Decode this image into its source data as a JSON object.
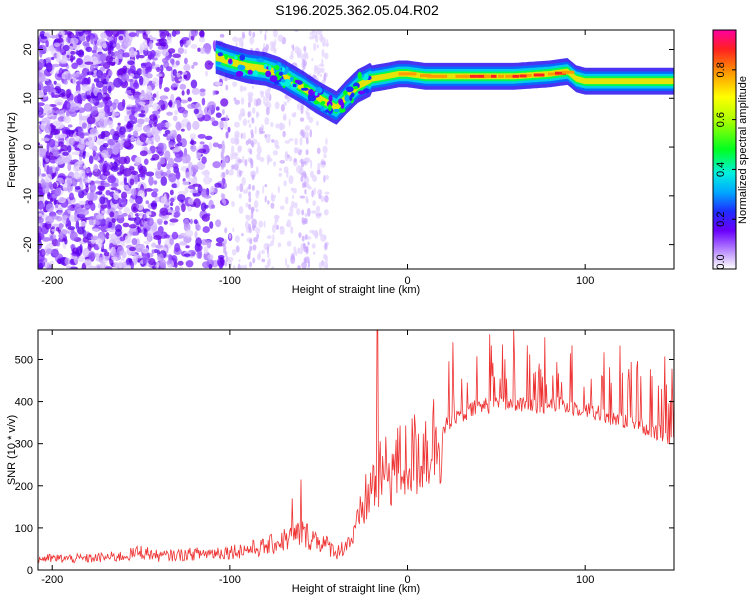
{
  "title": "S196.2025.362.05.04.R02",
  "chart_data": [
    {
      "type": "heatmap",
      "xlabel": "Height of straight line (km)",
      "ylabel": "Frequency (Hz)",
      "xlim": [
        -208,
        150
      ],
      "ylim": [
        -25,
        24
      ],
      "x_ticks": [
        -200,
        -100,
        0,
        100
      ],
      "x_tick_labels": [
        "-200",
        "-100",
        "0",
        "100"
      ],
      "y_ticks": [
        20,
        10,
        0,
        -10,
        -20
      ],
      "y_tick_labels": [
        "20",
        "10",
        "0",
        "-10",
        "-20"
      ],
      "colorbar": {
        "label": "Normalized spectral amplitude",
        "range": [
          0,
          0.96
        ],
        "ticks": [
          0.0,
          0.2,
          0.4,
          0.6,
          0.8
        ],
        "tick_labels": [
          "0.0",
          "0.2",
          "0.4",
          "0.6",
          "0.8"
        ]
      },
      "ridge": {
        "x": [
          -108,
          -100,
          -90,
          -80,
          -72,
          -65,
          -58,
          -52,
          -45,
          -40,
          -35,
          -28,
          -20,
          -12,
          -5,
          0,
          10,
          20,
          40,
          60,
          80,
          90,
          95,
          100,
          120,
          150
        ],
        "y": [
          18.5,
          17.5,
          16.5,
          16,
          15,
          13.5,
          12,
          10.5,
          9,
          8,
          10,
          12.5,
          14,
          14.5,
          15,
          15,
          14.5,
          14.5,
          14.5,
          14.5,
          15,
          15.5,
          14,
          13.5,
          13.5,
          13.5
        ]
      }
    },
    {
      "type": "line",
      "xlabel": "Height of straight line (km)",
      "ylabel": "SNR (10 * v/v)",
      "xlim": [
        -208,
        150
      ],
      "ylim": [
        0,
        570
      ],
      "x_ticks": [
        -200,
        -100,
        0,
        100
      ],
      "x_tick_labels": [
        "-200",
        "-100",
        "0",
        "100"
      ],
      "y_ticks": [
        0,
        100,
        200,
        300,
        400,
        500
      ],
      "y_tick_labels": [
        "0",
        "100",
        "200",
        "300",
        "400",
        "500"
      ],
      "color": "#ee3333",
      "envelope": {
        "x": [
          -208,
          -180,
          -160,
          -150,
          -140,
          -120,
          -100,
          -80,
          -70,
          -60,
          -50,
          -40,
          -30,
          -25,
          -20,
          -15,
          -10,
          0,
          10,
          20,
          30,
          40,
          50,
          60,
          70,
          80,
          90,
          100,
          110,
          120,
          130,
          140,
          150
        ],
        "y": [
          25,
          25,
          30,
          40,
          30,
          35,
          40,
          50,
          65,
          80,
          65,
          40,
          80,
          150,
          200,
          220,
          240,
          260,
          290,
          330,
          360,
          380,
          385,
          385,
          380,
          385,
          380,
          375,
          360,
          350,
          340,
          320,
          300
        ]
      },
      "spikes": [
        {
          "x": -17,
          "y": 570
        },
        {
          "x": -60,
          "y": 215
        },
        {
          "x": -65,
          "y": 170
        }
      ]
    }
  ]
}
